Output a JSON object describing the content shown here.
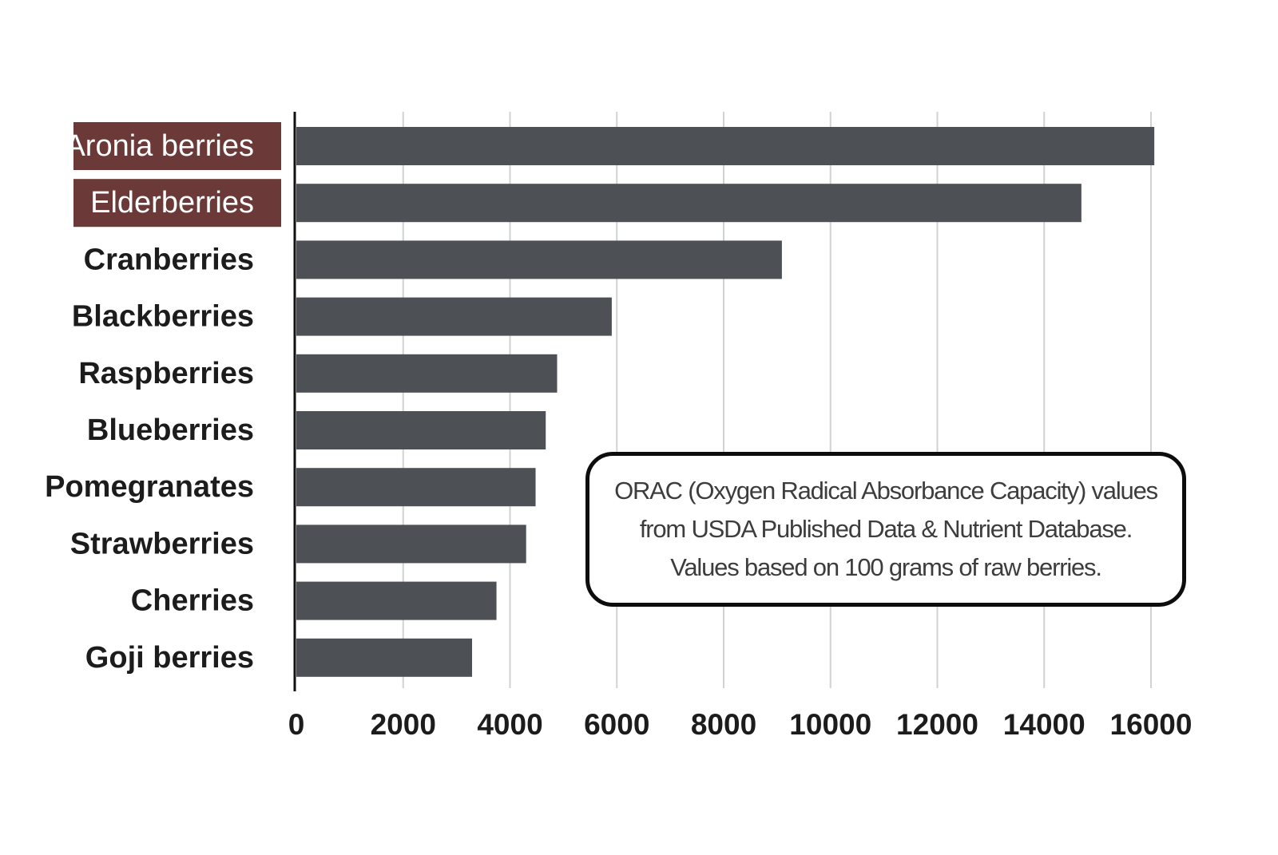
{
  "chart_data": {
    "type": "bar",
    "orientation": "horizontal",
    "categories": [
      "Aronia berries",
      "Elderberries",
      "Cranberries",
      "Blackberries",
      "Raspberries",
      "Blueberries",
      "Pomegranates",
      "Strawberries",
      "Cherries",
      "Goji berries"
    ],
    "values": [
      16062,
      14697,
      9090,
      5905,
      4882,
      4669,
      4479,
      4302,
      3747,
      3290
    ],
    "highlighted_categories": [
      "Aronia berries",
      "Elderberries"
    ],
    "xlim": [
      0,
      16000
    ],
    "x_ticks": [
      "0",
      "2000",
      "4000",
      "6000",
      "8000",
      "10000",
      "12000",
      "14000",
      "16000"
    ],
    "grid": "vertical",
    "title": "",
    "xlabel": "",
    "ylabel": "",
    "annotation": [
      "ORAC (Oxygen Radical Absorbance Capacity) values",
      "from USDA Published Data & Nutrient Database.",
      "Values based on 100 grams of raw berries."
    ],
    "colors": {
      "bar": "#4d5155",
      "highlight_label_bg": "#6b3a38",
      "highlight_label_text": "#ffffff",
      "grid": "#cfd3d2",
      "axis": "#111111"
    }
  }
}
